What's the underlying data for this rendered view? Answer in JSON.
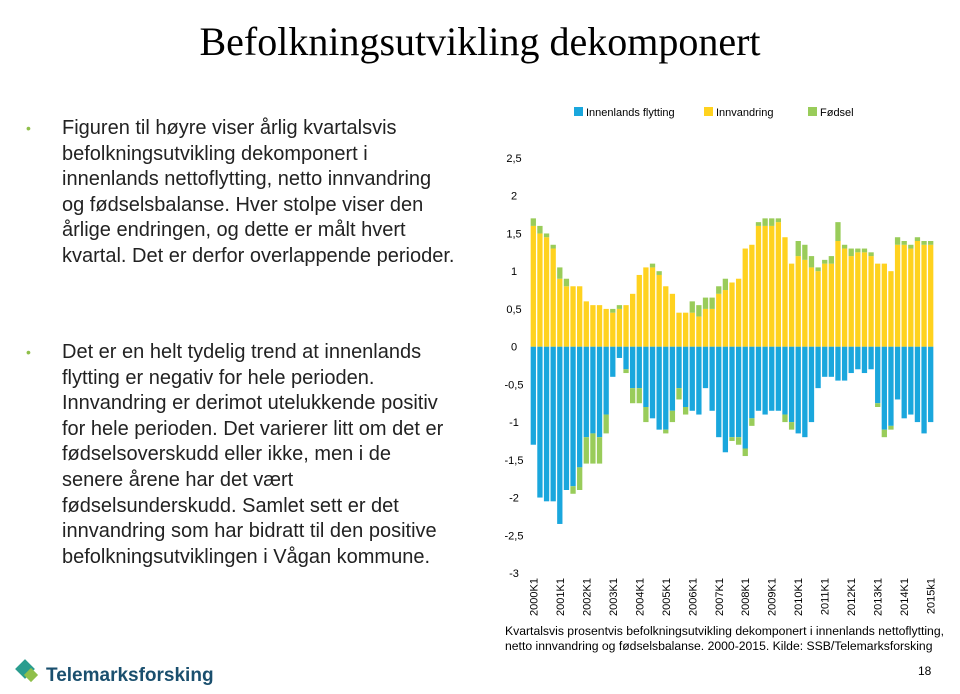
{
  "title": "Befolkningsutvikling dekomponert",
  "bullets": [
    "Figuren til høyre viser årlig kvartalsvis befolkningsutvikling dekomponert i innenlands nettoflytting, netto innvandring og fødselsbalanse. Hver stolpe viser den årlige endringen, og dette er målt hvert kvartal. Det er derfor overlappende perioder.",
    "Det er en helt tydelig trend at innenlands flytting er negativ for hele perioden. Innvandring er derimot utelukkende positiv for hele perioden. Det varierer litt om det er fødselsoverskudd eller ikke, men i de senere årene har det vært fødselsunderskudd. Samlet sett er det innvandring som har bidratt til den positive befolkningsutviklingen i Vågan kommune."
  ],
  "chart_data": {
    "type": "bar",
    "stacked": true,
    "categories": [
      "2000K1",
      null,
      null,
      null,
      "2001K1",
      null,
      null,
      null,
      "2002K1",
      null,
      null,
      null,
      "2003K1",
      null,
      null,
      null,
      "2004K1",
      null,
      null,
      null,
      "2005K1",
      null,
      null,
      null,
      "2006K1",
      null,
      null,
      null,
      "2007K1",
      null,
      null,
      null,
      "2008K1",
      null,
      null,
      null,
      "2009K1",
      null,
      null,
      null,
      "2010K1",
      null,
      null,
      null,
      "2011K1",
      null,
      null,
      null,
      "2012K1",
      null,
      null,
      null,
      "2013K1",
      null,
      null,
      null,
      "2014K1",
      null,
      null,
      null,
      "2015k1"
    ],
    "series": [
      {
        "name": "Innenlands flytting",
        "color": "#1aa7dd",
        "values": [
          -1.3,
          -2.0,
          -2.05,
          -2.05,
          -2.35,
          -1.9,
          -1.85,
          -1.6,
          -1.2,
          -1.15,
          -1.2,
          -0.9,
          -0.4,
          -0.15,
          -0.3,
          -0.55,
          -0.55,
          -0.8,
          -0.95,
          -1.1,
          -1.1,
          -0.85,
          -0.55,
          -0.8,
          -0.85,
          -0.9,
          -0.55,
          -0.85,
          -1.2,
          -1.4,
          -1.2,
          -1.2,
          -1.35,
          -0.95,
          -0.85,
          -0.9,
          -0.85,
          -0.85,
          -0.9,
          -1.0,
          -1.15,
          -1.2,
          -1.0,
          -0.55,
          -0.4,
          -0.4,
          -0.45,
          -0.45,
          -0.35,
          -0.3,
          -0.35,
          -0.3,
          -0.75,
          -1.1,
          -1.05,
          -0.7,
          -0.95,
          -0.9,
          -1.0,
          -1.15,
          -1.0
        ]
      },
      {
        "name": "Innvandring",
        "color": "#ffd21f",
        "values": [
          1.6,
          1.5,
          1.45,
          1.3,
          0.9,
          0.8,
          0.8,
          0.8,
          0.6,
          0.55,
          0.55,
          0.5,
          0.45,
          0.5,
          0.55,
          0.7,
          0.95,
          1.05,
          1.05,
          0.95,
          0.8,
          0.7,
          0.45,
          0.45,
          0.45,
          0.4,
          0.5,
          0.5,
          0.7,
          0.75,
          0.85,
          0.9,
          1.3,
          1.35,
          1.6,
          1.6,
          1.6,
          1.65,
          1.45,
          1.1,
          1.2,
          1.15,
          1.05,
          1.0,
          1.1,
          1.1,
          1.4,
          1.3,
          1.2,
          1.25,
          1.25,
          1.2,
          1.1,
          1.1,
          1.0,
          1.35,
          1.35,
          1.3,
          1.4,
          1.35,
          1.35
        ]
      },
      {
        "name": "Fødsel",
        "color": "#99cc5a",
        "values": [
          0.1,
          0.1,
          0.05,
          0.05,
          0.15,
          0.1,
          -0.1,
          -0.3,
          -0.35,
          -0.4,
          -0.35,
          -0.25,
          0.05,
          0.05,
          -0.05,
          -0.2,
          -0.2,
          -0.2,
          0.05,
          0.05,
          -0.05,
          -0.15,
          -0.15,
          -0.1,
          0.15,
          0.15,
          0.15,
          0.15,
          0.1,
          0.15,
          -0.05,
          -0.1,
          -0.1,
          -0.1,
          0.05,
          0.1,
          0.1,
          0.05,
          -0.1,
          -0.1,
          0.2,
          0.2,
          0.15,
          0.05,
          0.05,
          0.1,
          0.25,
          0.05,
          0.1,
          0.05,
          0.05,
          0.05,
          -0.05,
          -0.1,
          -0.05,
          0.1,
          0.05,
          0.05,
          0.05,
          0.05,
          0.05
        ]
      }
    ],
    "ylim": [
      -3,
      2.5
    ],
    "yticks": [
      -3,
      {
        "value": -2.5,
        "label": "-2,5"
      },
      -2,
      {
        "value": -1.5,
        "label": "-1,5"
      },
      -1,
      {
        "value": -0.5,
        "label": "-0,5"
      },
      0,
      {
        "value": 0.5,
        "label": "0,5"
      },
      1,
      {
        "value": 1.5,
        "label": "1,5"
      },
      2,
      {
        "value": 2.5,
        "label": "2,5"
      }
    ],
    "legend": "top",
    "caption": "Kvartalsvis prosentvis befolkningsutvikling dekomponert i innenlands nettoflytting, netto innvandring og fødselsbalanse. 2000-2015. Kilde: SSB/Telemarksforsking"
  },
  "footer": {
    "logo": "Telemarksforsking",
    "page": "18"
  }
}
